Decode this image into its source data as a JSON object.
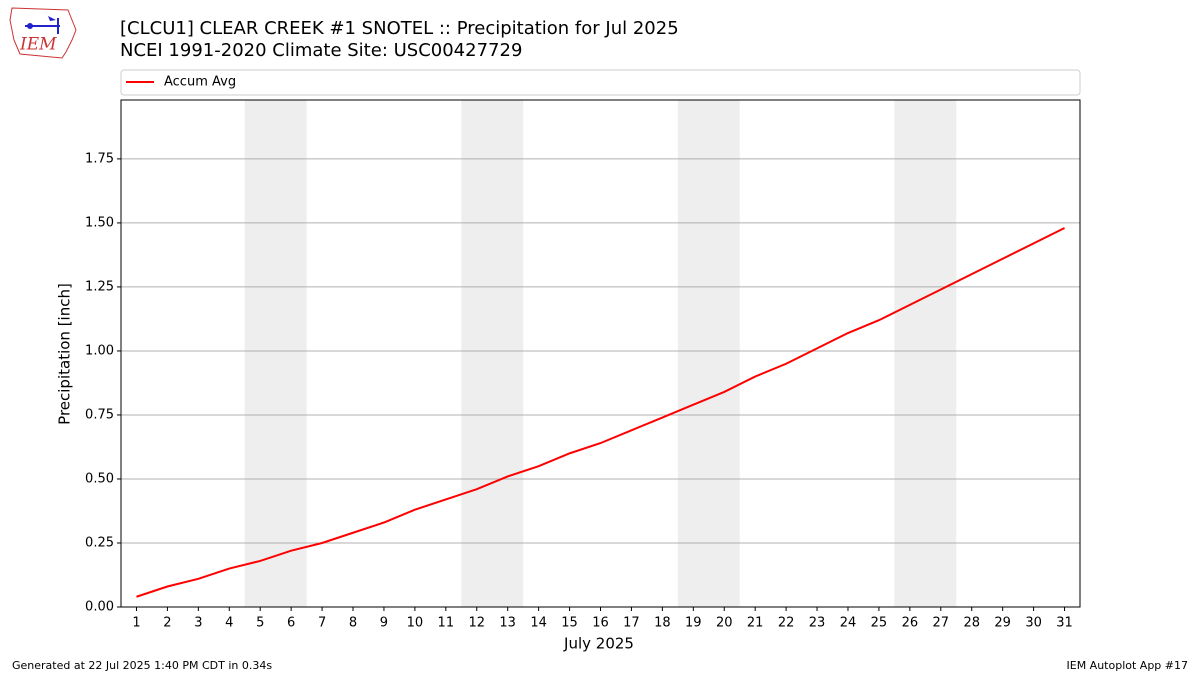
{
  "chart_data": {
    "type": "line",
    "title": "[CLCU1] CLEAR CREEK #1 SNOTEL :: Precipitation for Jul 2025",
    "subtitle": "NCEI 1991-2020 Climate Site: USC00427729",
    "x_label": "July 2025",
    "y_label": "Precipitation [inch]",
    "logo_text": "IEM",
    "footer_left": "Generated at 22 Jul 2025 1:40 PM CDT in 0.34s",
    "footer_right": "IEM Autoplot App #17",
    "x": [
      1,
      2,
      3,
      4,
      5,
      6,
      7,
      8,
      9,
      10,
      11,
      12,
      13,
      14,
      15,
      16,
      17,
      18,
      19,
      20,
      21,
      22,
      23,
      24,
      25,
      26,
      27,
      28,
      29,
      30,
      31
    ],
    "series": [
      {
        "name": "Accum Avg",
        "color": "#ff0000",
        "values": [
          0.04,
          0.08,
          0.11,
          0.15,
          0.18,
          0.22,
          0.25,
          0.29,
          0.33,
          0.38,
          0.42,
          0.46,
          0.51,
          0.55,
          0.6,
          0.64,
          0.69,
          0.74,
          0.79,
          0.84,
          0.9,
          0.95,
          1.01,
          1.07,
          1.12,
          1.18,
          1.24,
          1.3,
          1.36,
          1.42,
          1.48
        ]
      }
    ],
    "weekend_spans": [
      [
        4.5,
        6.5
      ],
      [
        11.5,
        13.5
      ],
      [
        18.5,
        20.5
      ],
      [
        25.5,
        27.5
      ]
    ],
    "weekend_color": "#eeeeee",
    "xlim": [
      0.5,
      31.5
    ],
    "ylim": [
      0,
      1.98
    ],
    "xticks": [
      1,
      2,
      3,
      4,
      5,
      6,
      7,
      8,
      9,
      10,
      11,
      12,
      13,
      14,
      15,
      16,
      17,
      18,
      19,
      20,
      21,
      22,
      23,
      24,
      25,
      26,
      27,
      28,
      29,
      30,
      31
    ],
    "yticks": [
      {
        "value": 0,
        "label": "0.00"
      },
      {
        "value": 0.25,
        "label": "0.25"
      },
      {
        "value": 0.5,
        "label": "0.50"
      },
      {
        "value": 0.75,
        "label": "0.75"
      },
      {
        "value": 1,
        "label": "1.00"
      },
      {
        "value": 1.25,
        "label": "1.25"
      },
      {
        "value": 1.5,
        "label": "1.50"
      },
      {
        "value": 1.75,
        "label": "1.75"
      }
    ],
    "grid": true
  }
}
